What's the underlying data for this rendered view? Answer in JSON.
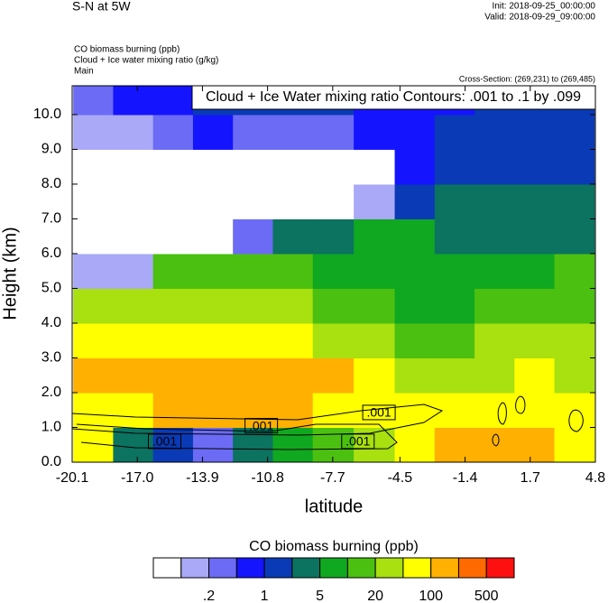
{
  "chart_data": {
    "type": "filled-contour",
    "title": "S-N at 5W",
    "init": "Init: 2018-09-25_00:00:00",
    "valid": "Valid: 2018-09-29_09:00:00",
    "field_title": "CO biomass burning   (ppb)",
    "contour_title": "Cloud + Ice water mixing ratio   (g/kg)",
    "domain_name": "Main",
    "cross_section": "Cross-Section: (269,231) to (269,485)",
    "contour_info": "Cloud + Ice Water mixing ratio Contours: .001 to .1 by .099",
    "x_label": "latitude",
    "y_label": "Height (km)",
    "xlim": [
      -20.1,
      4.8
    ],
    "ylim": [
      0,
      10.83
    ],
    "xticks": [
      -20.1,
      {
        "value": -17,
        "label": "-17.0"
      },
      -13.9,
      -10.8,
      -7.7,
      -4.5,
      -1.4,
      1.7,
      4.8
    ],
    "yticks": [
      {
        "value": 0,
        "label": "0.0"
      },
      {
        "value": 1,
        "label": "1.0"
      },
      {
        "value": 2,
        "label": "2.0"
      },
      {
        "value": 3,
        "label": "3.0"
      },
      {
        "value": 4,
        "label": "4.0"
      },
      {
        "value": 5,
        "label": "5.0"
      },
      {
        "value": 6,
        "label": "6.0"
      },
      {
        "value": 7,
        "label": "7.0"
      },
      {
        "value": 8,
        "label": "8.0"
      },
      {
        "value": 9,
        "label": "9.0"
      },
      {
        "value": 10,
        "label": "10.0"
      }
    ],
    "field": {
      "x": [
        -19.1,
        -17.2,
        -15.3,
        -13.4,
        -11.5,
        -9.6,
        -7.7,
        -5.7,
        -3.8,
        -1.9,
        0.0,
        1.9,
        3.8
      ],
      "y": [
        0.5,
        1.5,
        2.5,
        3.5,
        4.5,
        5.5,
        6.5,
        7.5,
        8.5,
        9.5,
        10.5
      ],
      "values": [
        [
          60,
          3,
          1,
          0.3,
          3,
          7,
          15,
          30,
          80,
          150,
          150,
          120,
          60
        ],
        [
          60,
          70,
          150,
          150,
          150,
          120,
          80,
          70,
          60,
          80,
          80,
          60,
          50
        ],
        [
          150,
          150,
          150,
          150,
          150,
          150,
          150,
          60,
          40,
          30,
          40,
          80,
          40
        ],
        [
          70,
          80,
          80,
          70,
          60,
          50,
          40,
          25,
          15,
          15,
          20,
          30,
          30
        ],
        [
          25,
          35,
          40,
          30,
          25,
          20,
          15,
          12,
          8,
          8,
          10,
          15,
          15
        ],
        [
          0.1,
          0.1,
          15,
          15,
          12,
          10,
          8,
          7,
          6,
          6,
          6,
          8,
          10
        ],
        [
          0.05,
          0.05,
          0.05,
          0.05,
          0.3,
          3,
          4,
          5,
          5,
          4,
          4,
          4,
          4
        ],
        [
          0.05,
          0.05,
          0.05,
          0.05,
          0.05,
          0.05,
          0.05,
          0.1,
          1.5,
          2,
          2,
          2,
          2
        ],
        [
          0.05,
          0.05,
          0.05,
          0.05,
          0.05,
          0.05,
          0.05,
          0.05,
          0.5,
          1.5,
          1.5,
          1.5,
          1.5
        ],
        [
          0.1,
          0.15,
          0.3,
          0.5,
          0.3,
          0.2,
          0.3,
          0.5,
          0.8,
          1.2,
          1.5,
          1.5,
          1.5
        ],
        [
          0.3,
          0.5,
          0.8,
          1.2,
          1.5,
          1.5,
          1,
          0.8,
          0.8,
          0.8,
          1,
          1.5,
          1.5
        ]
      ]
    },
    "contour_labels": [
      {
        "text": ".001",
        "lat": -15.7,
        "height": 0.6
      },
      {
        "text": ".001",
        "lat": -11.1,
        "height": 1.05
      },
      {
        "text": ".001",
        "lat": -5.5,
        "height": 1.43
      },
      {
        "text": ".001",
        "lat": -6.5,
        "height": 0.6
      }
    ],
    "colorbar": {
      "title": "CO biomass burning  (ppb)",
      "levels": [
        0.1,
        0.2,
        0.5,
        1,
        2,
        5,
        10,
        20,
        50,
        100,
        200,
        500
      ],
      "colors": [
        "#ffffff",
        "#a9a9f7",
        "#6b6bf5",
        "#1414ff",
        "#0a3ab5",
        "#0b7360",
        "#10a820",
        "#4cc010",
        "#a8e010",
        "#ffff00",
        "#ffb000",
        "#ff6a00",
        "#ff1010"
      ],
      "ticks": [
        {
          "value": 0.2,
          "label": ".2"
        },
        1,
        5,
        20,
        100,
        500
      ]
    }
  }
}
